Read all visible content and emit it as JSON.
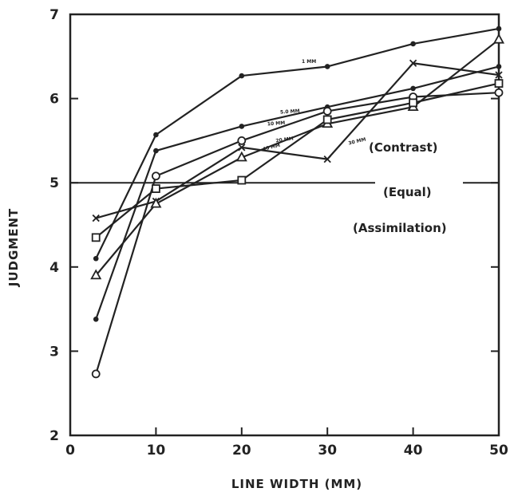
{
  "chart_data": {
    "type": "line",
    "xlabel": "LINE WIDTH (MM)",
    "ylabel": "JUDGMENT",
    "xlim": [
      0,
      50
    ],
    "ylim": [
      2,
      7
    ],
    "xticks": [
      0,
      10,
      20,
      30,
      40,
      50
    ],
    "yticks": [
      2,
      3,
      4,
      5,
      6,
      7
    ],
    "grid": false,
    "reference_line": {
      "y": 5,
      "label": "(Equal)"
    },
    "annotations": [
      "(Contrast)",
      "(Assimilation)"
    ],
    "series": [
      {
        "name": "1 MM",
        "marker": "dot",
        "x": [
          3,
          10,
          20,
          30,
          40,
          50
        ],
        "y": [
          4.1,
          5.57,
          6.27,
          6.38,
          6.65,
          6.83
        ]
      },
      {
        "name": "5.0 MM",
        "marker": "dot",
        "x": [
          3,
          10,
          20,
          30,
          40,
          50
        ],
        "y": [
          3.38,
          5.38,
          5.67,
          5.9,
          6.12,
          6.38
        ]
      },
      {
        "name": "10 MM",
        "marker": "circle",
        "x": [
          3,
          10,
          20,
          30,
          40,
          50
        ],
        "y": [
          2.73,
          5.08,
          5.5,
          5.85,
          6.02,
          6.07
        ]
      },
      {
        "name": "20 MM",
        "marker": "x",
        "x": [
          3,
          10,
          20,
          30,
          40,
          50
        ],
        "y": [
          4.58,
          4.78,
          5.42,
          5.28,
          6.42,
          6.28
        ]
      },
      {
        "name": "40 MM",
        "marker": "triangle",
        "x": [
          3,
          10,
          20,
          30,
          40,
          50
        ],
        "y": [
          3.9,
          4.75,
          5.3,
          5.7,
          5.9,
          6.7
        ]
      },
      {
        "name": "30 MM",
        "marker": "square",
        "x": [
          3,
          10,
          20,
          30,
          40,
          50
        ],
        "y": [
          4.35,
          4.93,
          5.03,
          5.75,
          5.95,
          6.18
        ]
      }
    ]
  }
}
